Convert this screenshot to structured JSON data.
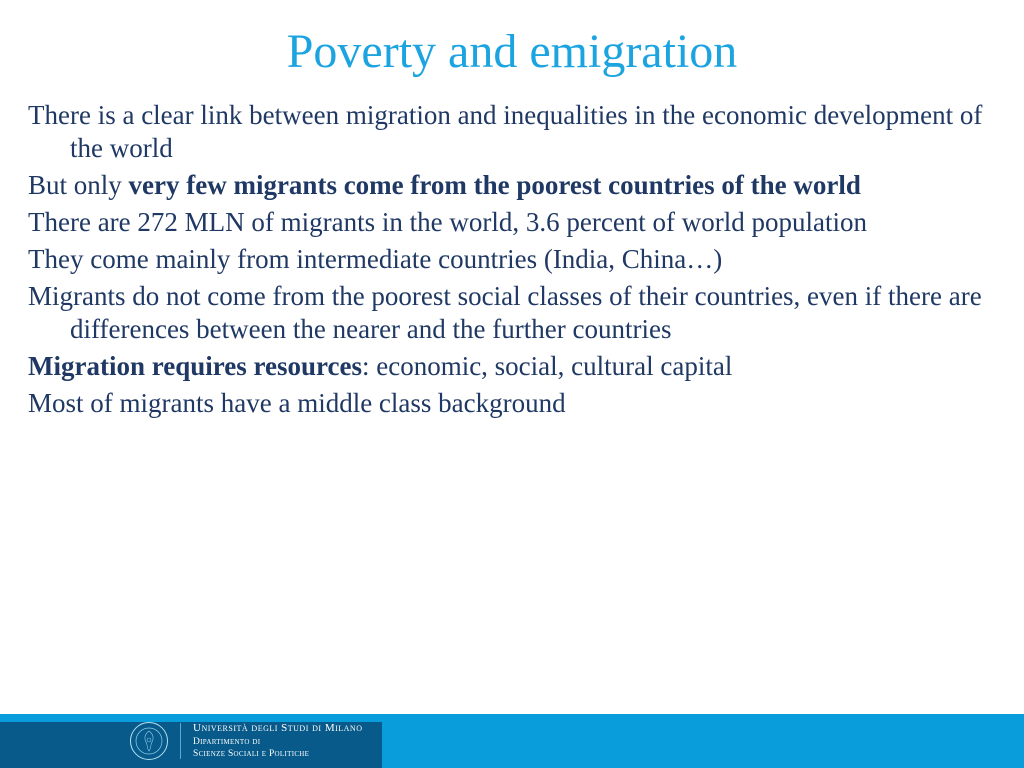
{
  "colors": {
    "title": "#1ca4e0",
    "body_text": "#1f3864",
    "footer_dark": "#075a8a",
    "footer_light": "#0a9ddb",
    "footer_stripe": "#0a9ddb",
    "logo_ring": "#b3e0f2"
  },
  "title": "Poverty and emigration",
  "paragraphs": [
    {
      "runs": [
        {
          "t": "There is a clear link between migration and inequalities in the economic development of the world",
          "bold": false
        }
      ]
    },
    {
      "runs": [
        {
          "t": "But only ",
          "bold": false
        },
        {
          "t": "very few migrants come from the poorest countries of the world",
          "bold": true
        }
      ]
    },
    {
      "runs": [
        {
          "t": "There are 272 MLN of migrants in the world, 3.6 percent of world population",
          "bold": false
        }
      ]
    },
    {
      "runs": [
        {
          "t": "They come mainly from intermediate countries (India, China…)",
          "bold": false
        }
      ]
    },
    {
      "runs": [
        {
          "t": "Migrants do not come from the poorest social classes of their countries, even if there are differences between the nearer and the further countries",
          "bold": false
        }
      ]
    },
    {
      "runs": [
        {
          "t": "Migration requires resources",
          "bold": true
        },
        {
          "t": ": economic, social, cultural capital",
          "bold": false
        }
      ]
    },
    {
      "runs": [
        {
          "t": "Most of migrants have a middle class background",
          "bold": false
        }
      ]
    }
  ],
  "footer": {
    "university": "Università degli Studi di Milano",
    "department_line1": "Dipartimento di",
    "department_line2": "Scienze Sociali e Politiche"
  }
}
